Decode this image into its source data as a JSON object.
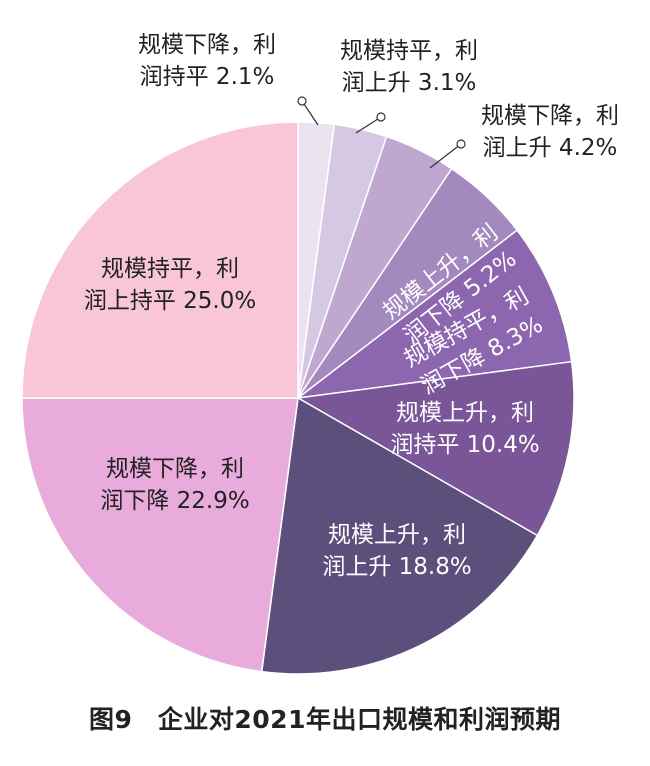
{
  "chart_data": {
    "type": "pie",
    "title": "图9　企业对2021年出口规模和利润预期",
    "unit": "%",
    "slices": [
      {
        "label_line1": "规模下降，利",
        "label_line2": "润持平 2.1%",
        "value": 2.1,
        "color": "#ece3f1"
      },
      {
        "label_line1": "规模持平，利",
        "label_line2": "润上升 3.1%",
        "value": 3.1,
        "color": "#d6c7e2"
      },
      {
        "label_line1": "规模下降，利",
        "label_line2": "润上升 4.2%",
        "value": 4.2,
        "color": "#bfa7cf"
      },
      {
        "label_line1": "规模上升，利",
        "label_line2": "润下降 5.2%",
        "value": 5.2,
        "color": "#a489bf"
      },
      {
        "label_line1": "规模持平，利",
        "label_line2": "润下降 8.3%",
        "value": 8.3,
        "color": "#8c66ae"
      },
      {
        "label_line1": "规模上升，利",
        "label_line2": "润持平 10.4%",
        "value": 10.4,
        "color": "#7a5598"
      },
      {
        "label_line1": "规模上升，利",
        "label_line2": "润上升 18.8%",
        "value": 18.8,
        "color": "#5d4f7c"
      },
      {
        "label_line1": "规模下降，利",
        "label_line2": "润下降 22.9%",
        "value": 22.9,
        "color": "#e9aadc"
      },
      {
        "label_line1": "规模持平，利",
        "label_line2": "润上持平 25.0%",
        "value": 25.0,
        "color": "#f8c6d7"
      }
    ]
  }
}
